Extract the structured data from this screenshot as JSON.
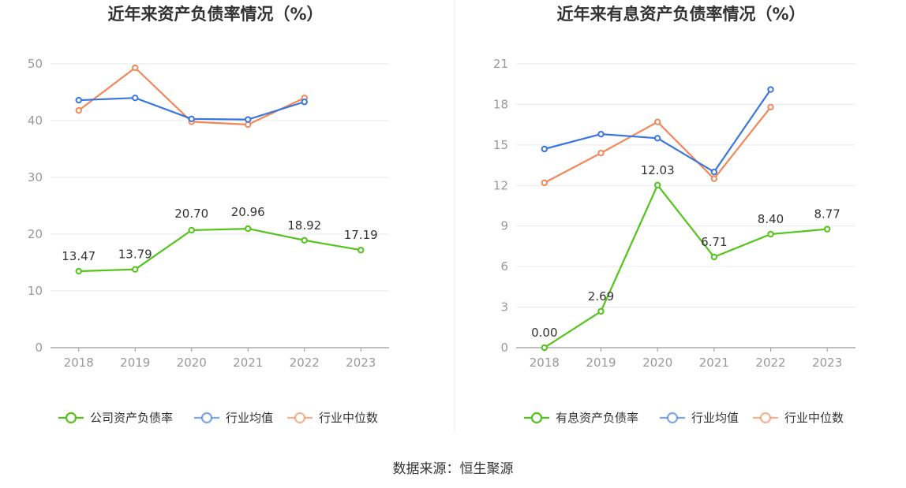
{
  "chart_data": [
    {
      "type": "line",
      "title": "近年来资产负债率情况（%）",
      "categories": [
        "2018",
        "2019",
        "2020",
        "2021",
        "2022",
        "2023"
      ],
      "ylim": [
        0,
        50
      ],
      "yticks": [
        0,
        10,
        20,
        30,
        40,
        50
      ],
      "grid": true,
      "legend_position": "bottom",
      "series": [
        {
          "name": "公司资产负债率",
          "color": "#52c41a",
          "values": [
            13.47,
            13.79,
            20.7,
            20.96,
            18.92,
            17.19
          ],
          "labels": [
            "13.47",
            "13.79",
            "20.70",
            "20.96",
            "18.92",
            "17.19"
          ],
          "show_labels": true
        },
        {
          "name": "行业均值",
          "color": "#3a76e0",
          "values": [
            43.6,
            44.0,
            40.3,
            40.2,
            43.3,
            null
          ],
          "show_labels": false
        },
        {
          "name": "行业中位数",
          "color": "#f0885a",
          "values": [
            41.8,
            49.3,
            39.8,
            39.3,
            44.0,
            null
          ],
          "show_labels": false
        }
      ]
    },
    {
      "type": "line",
      "title": "近年来有息资产负债率情况（%）",
      "categories": [
        "2018",
        "2019",
        "2020",
        "2021",
        "2022",
        "2023"
      ],
      "ylim": [
        0,
        21
      ],
      "yticks": [
        0,
        3,
        6,
        9,
        12,
        15,
        18,
        21
      ],
      "grid": true,
      "legend_position": "bottom",
      "series": [
        {
          "name": "有息资产负债率",
          "color": "#52c41a",
          "values": [
            0.0,
            2.69,
            12.03,
            6.71,
            8.4,
            8.77
          ],
          "labels": [
            "0.00",
            "2.69",
            "12.03",
            "6.71",
            "8.40",
            "8.77"
          ],
          "show_labels": true
        },
        {
          "name": "行业均值",
          "color": "#3a76e0",
          "values": [
            14.7,
            15.8,
            15.5,
            13.0,
            19.1,
            null
          ],
          "show_labels": false
        },
        {
          "name": "行业中位数",
          "color": "#f0885a",
          "values": [
            12.2,
            14.4,
            16.7,
            12.5,
            17.8,
            null
          ],
          "show_labels": false
        }
      ]
    }
  ],
  "source": "数据来源：恒生聚源"
}
